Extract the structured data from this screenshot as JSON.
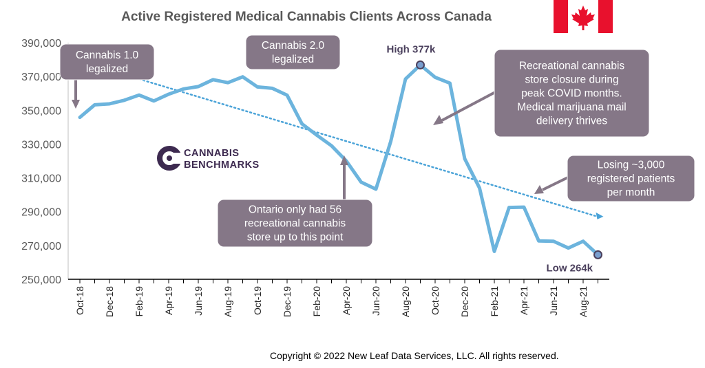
{
  "chart_data": {
    "type": "line",
    "title": "Active Registered Medical Cannabis Clients Across Canada",
    "xlabel": "",
    "ylabel": "",
    "ylim": [
      250000,
      390000
    ],
    "yticks": [
      "250,000",
      "270,000",
      "290,000",
      "310,000",
      "330,000",
      "350,000",
      "370,000",
      "390,000"
    ],
    "x_tick_labels": [
      "Oct-18",
      "Dec-18",
      "Feb-19",
      "Apr-19",
      "Jun-19",
      "Aug-19",
      "Oct-19",
      "Dec-19",
      "Feb-20",
      "Apr-20",
      "Jun-20",
      "Aug-20",
      "Oct-20",
      "Dec-20",
      "Feb-21",
      "Apr-21",
      "Jun-21",
      "Aug-21"
    ],
    "categories": [
      "Oct-18",
      "Nov-18",
      "Dec-18",
      "Jan-19",
      "Feb-19",
      "Mar-19",
      "Apr-19",
      "May-19",
      "Jun-19",
      "Jul-19",
      "Aug-19",
      "Sep-19",
      "Oct-19",
      "Nov-19",
      "Dec-19",
      "Jan-20",
      "Feb-20",
      "Mar-20",
      "Apr-20",
      "May-20",
      "Jun-20",
      "Jul-20",
      "Aug-20",
      "Sep-20",
      "Oct-20",
      "Nov-20",
      "Dec-20",
      "Jan-21",
      "Feb-21",
      "Mar-21",
      "Apr-21",
      "May-21",
      "Jun-21",
      "Jul-21",
      "Aug-21",
      "Sep-21"
    ],
    "series": [
      {
        "name": "",
        "color": "#6cb4dd",
        "values": [
          345800,
          353200,
          353800,
          355900,
          359000,
          355500,
          359500,
          362600,
          364000,
          368100,
          366300,
          369800,
          363800,
          363000,
          358900,
          342000,
          335300,
          329000,
          320000,
          307500,
          303300,
          331500,
          368500,
          376800,
          369500,
          366000,
          321300,
          304000,
          266500,
          292500,
          292700,
          272700,
          272500,
          268500,
          272500,
          264500
        ]
      }
    ],
    "trendline": {
      "style": "dotted",
      "color": "#4aa3d8",
      "start": 379000,
      "end": 287500
    },
    "grid": false,
    "legend": "none",
    "highlights": [
      {
        "label": "High 377k",
        "value": 376800,
        "category": "Sep-20"
      },
      {
        "label": "Low 264k",
        "value": 264500,
        "category": "Sep-21"
      }
    ],
    "annotations": [
      {
        "lines": [
          "Cannabis 1.0",
          "legalized"
        ]
      },
      {
        "lines": [
          "Cannabis 2.0",
          "legalized"
        ]
      },
      {
        "lines": [
          "Recreational cannabis",
          "store closure during",
          "peak COVID months.",
          "Medical marijuana mail",
          "delivery thrives"
        ]
      },
      {
        "lines": [
          "Losing ~3,000",
          "registered patients",
          "per month"
        ]
      },
      {
        "lines": [
          "Ontario only had 56",
          "recreational cannabis",
          "store up to this point"
        ]
      }
    ]
  },
  "logo": {
    "line1": "CANNABIS",
    "line2": "BENCHMARKS",
    "color": "#3d2a50"
  },
  "flag": {
    "red": "#e8112d",
    "white": "#ffffff"
  },
  "copyright": "Copyright © 2022 New Leaf Data Services, LLC. All rights reserved."
}
